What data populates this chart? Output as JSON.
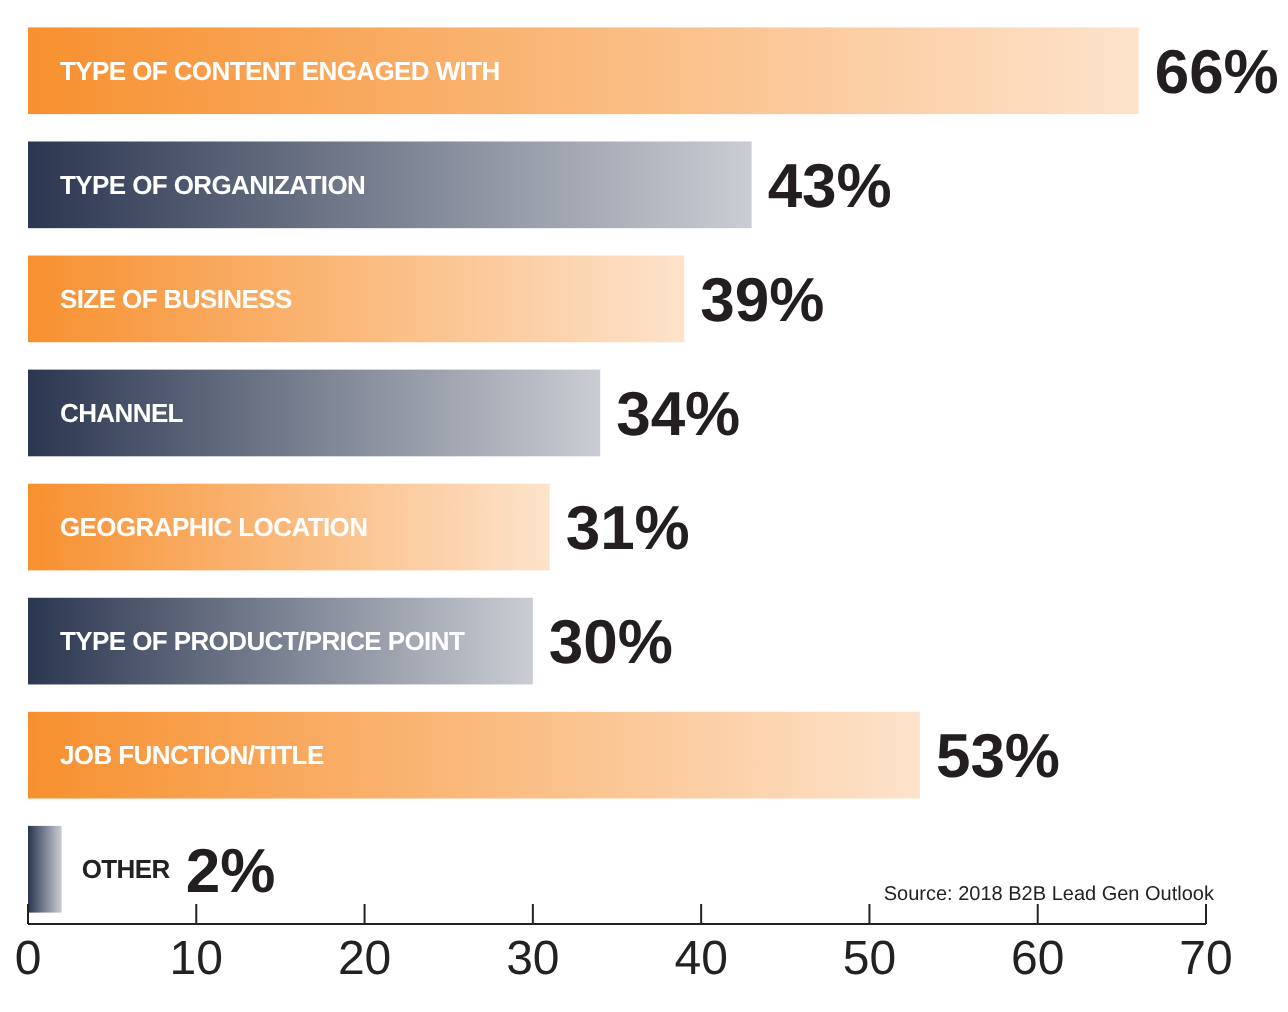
{
  "chart_data": {
    "type": "bar",
    "orientation": "horizontal",
    "categories": [
      "TYPE OF CONTENT ENGAGED WITH",
      "TYPE OF ORGANIZATION",
      "SIZE OF BUSINESS",
      "CHANNEL",
      "GEOGRAPHIC LOCATION",
      "TYPE OF PRODUCT/PRICE POINT",
      "JOB FUNCTION/TITLE",
      "OTHER"
    ],
    "values": [
      66,
      43,
      39,
      34,
      31,
      30,
      53,
      2
    ],
    "value_labels": [
      "66%",
      "43%",
      "39%",
      "34%",
      "31%",
      "30%",
      "53%",
      "2%"
    ],
    "colors": [
      "#f7902f",
      "#2b3650",
      "#f7902f",
      "#2b3650",
      "#f7902f",
      "#2b3650",
      "#f7902f",
      "#2b3650"
    ],
    "xlim": [
      0,
      70
    ],
    "xticks": [
      0,
      10,
      20,
      30,
      40,
      50,
      60,
      70
    ],
    "annotations": [
      "Source: 2018 B2B Lead Gen Outlook"
    ]
  }
}
